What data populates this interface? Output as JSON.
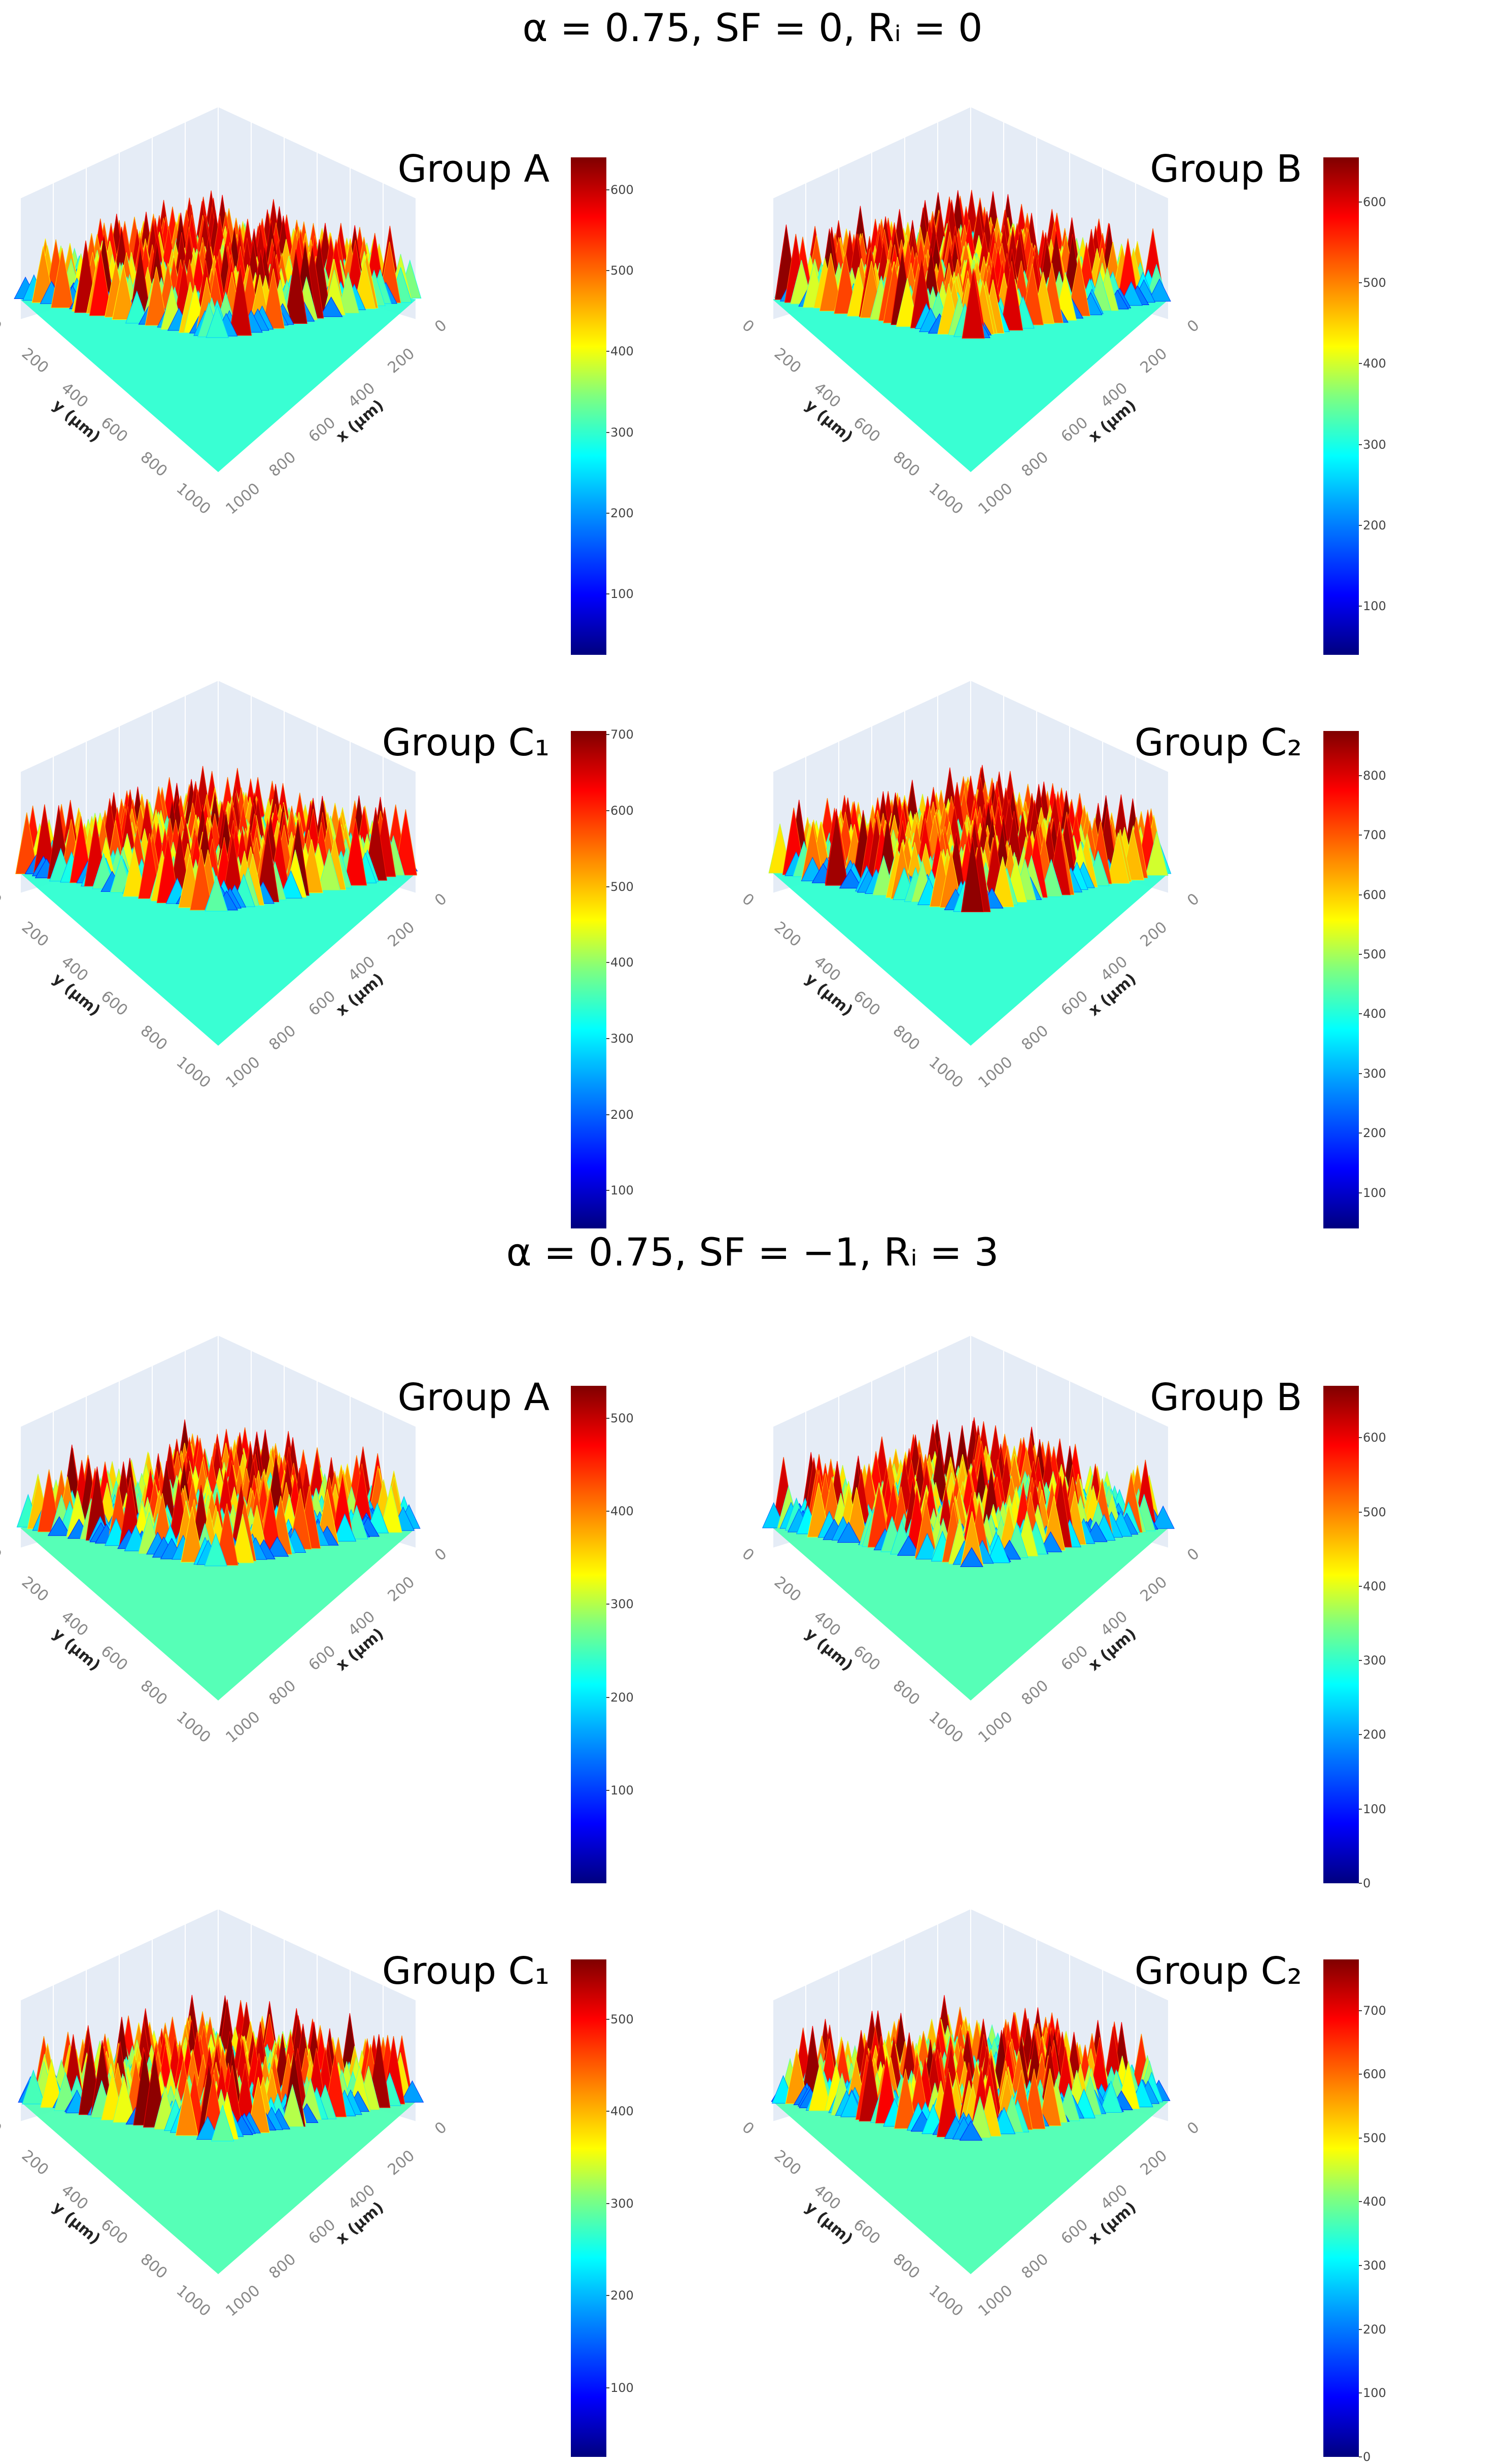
{
  "sections": [
    {
      "title": "α = 0.75, SF = 0,  Rᵢ = 0",
      "panels": [
        {
          "title": "Group A",
          "colorbar_ticks": [
            "100",
            "200",
            "300",
            "400",
            "500",
            "600"
          ],
          "vmin": 25,
          "vmax": 640
        },
        {
          "title": "Group B",
          "colorbar_ticks": [
            "100",
            "200",
            "300",
            "400",
            "500",
            "600"
          ],
          "vmin": 40,
          "vmax": 655
        },
        {
          "title": "Group C₁",
          "colorbar_ticks": [
            "100",
            "200",
            "300",
            "400",
            "500",
            "600",
            "700"
          ],
          "vmin": 50,
          "vmax": 705
        },
        {
          "title": "Group C₂",
          "colorbar_ticks": [
            "100",
            "200",
            "300",
            "400",
            "500",
            "600",
            "700",
            "800"
          ],
          "vmin": 40,
          "vmax": 875
        }
      ]
    },
    {
      "title": "α = 0.75, SF = −1,  Rᵢ = 3",
      "panels": [
        {
          "title": "Group A",
          "colorbar_ticks": [
            "100",
            "200",
            "300",
            "400",
            "500"
          ],
          "vmin": 0,
          "vmax": 535
        },
        {
          "title": "Group B",
          "colorbar_ticks": [
            "0",
            "100",
            "200",
            "300",
            "400",
            "500",
            "600"
          ],
          "vmin": 0,
          "vmax": 670
        },
        {
          "title": "Group C₁",
          "colorbar_ticks": [
            "100",
            "200",
            "300",
            "400",
            "500"
          ],
          "vmin": 25,
          "vmax": 565
        },
        {
          "title": "Group C₂",
          "colorbar_ticks": [
            "0",
            "100",
            "200",
            "300",
            "400",
            "500",
            "600",
            "700"
          ],
          "vmin": 0,
          "vmax": 780
        }
      ]
    }
  ],
  "axes": {
    "x_label": "x (μm)",
    "y_label": "y (μm)",
    "ticks": [
      "0",
      "200",
      "400",
      "600",
      "800",
      "1000"
    ]
  },
  "chart_data": {
    "type": "heatmap",
    "description_type": "3D surface plots of surface height over an x–y domain",
    "x_range": [
      0,
      1000
    ],
    "y_range": [
      0,
      1000
    ],
    "colormap": "jet",
    "series": [
      {
        "name": "SF=0, Ri=0, Group A",
        "z_range": [
          25,
          640
        ]
      },
      {
        "name": "SF=0, Ri=0, Group B",
        "z_range": [
          40,
          655
        ]
      },
      {
        "name": "SF=0, Ri=0, Group C1",
        "z_range": [
          50,
          705
        ]
      },
      {
        "name": "SF=0, Ri=0, Group C2",
        "z_range": [
          40,
          875
        ]
      },
      {
        "name": "SF=-1, Ri=3, Group A",
        "z_range": [
          0,
          535
        ]
      },
      {
        "name": "SF=-1, Ri=3, Group B",
        "z_range": [
          0,
          670
        ]
      },
      {
        "name": "SF=-1, Ri=3, Group C1",
        "z_range": [
          25,
          565
        ]
      },
      {
        "name": "SF=-1, Ri=3, Group C2",
        "z_range": [
          0,
          780
        ]
      }
    ]
  }
}
